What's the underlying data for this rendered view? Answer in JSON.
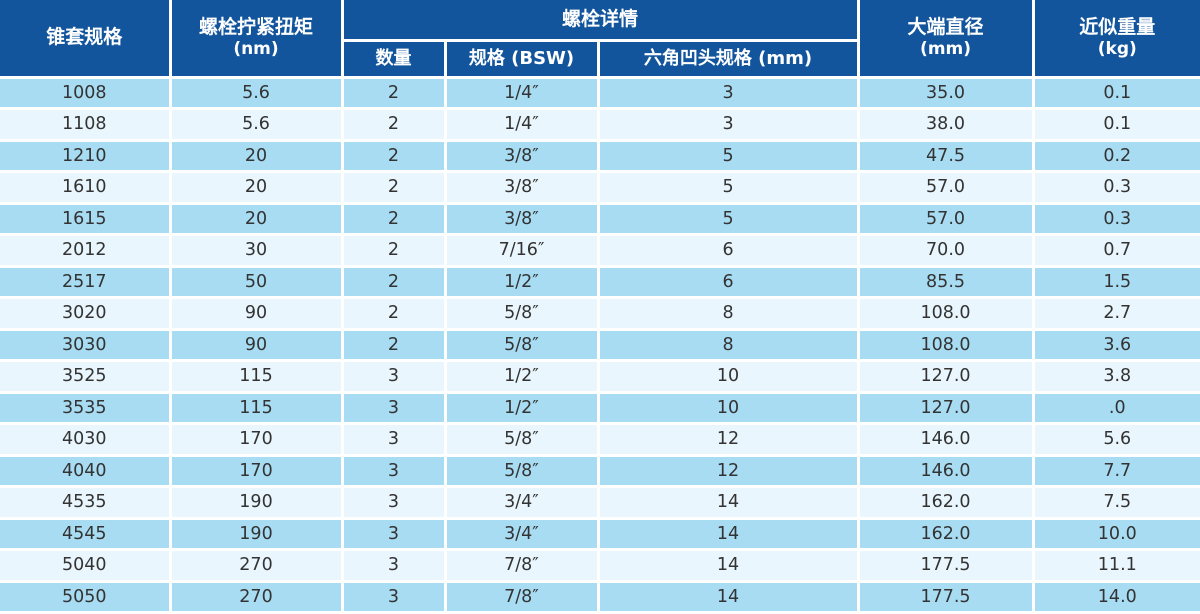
{
  "colors": {
    "header_bg": "#12559c",
    "row_dark": "#a8dcf3",
    "row_light": "#e9f6fd",
    "separator": "#ffffff",
    "header_text": "#ffffff",
    "body_text": "#333333"
  },
  "table": {
    "header": {
      "taper_spec": "锥套规格",
      "torque_line1": "螺栓拧紧扭矩",
      "torque_line2": "(nm)",
      "bolt_details_group": "螺栓详情",
      "qty": "数量",
      "spec_bsw": "规格 (BSW)",
      "hex_socket": "六角凹头规格 (mm)",
      "large_end_line1": "大端直径",
      "large_end_line2": "(mm)",
      "weight_line1": "近似重量",
      "weight_line2": "(kg)"
    },
    "column_keys": [
      "spec",
      "torque",
      "qty",
      "bsw",
      "hex",
      "diameter",
      "weight"
    ],
    "rows": [
      [
        "1008",
        "5.6",
        "2",
        "1/4″",
        "3",
        "35.0",
        "0.1"
      ],
      [
        "1108",
        "5.6",
        "2",
        "1/4″",
        "3",
        "38.0",
        "0.1"
      ],
      [
        "1210",
        "20",
        "2",
        "3/8″",
        "5",
        "47.5",
        "0.2"
      ],
      [
        "1610",
        "20",
        "2",
        "3/8″",
        "5",
        "57.0",
        "0.3"
      ],
      [
        "1615",
        "20",
        "2",
        "3/8″",
        "5",
        "57.0",
        "0.3"
      ],
      [
        "2012",
        "30",
        "2",
        "7/16″",
        "6",
        "70.0",
        "0.7"
      ],
      [
        "2517",
        "50",
        "2",
        "1/2″",
        "6",
        "85.5",
        "1.5"
      ],
      [
        "3020",
        "90",
        "2",
        "5/8″",
        "8",
        "108.0",
        "2.7"
      ],
      [
        "3030",
        "90",
        "2",
        "5/8″",
        "8",
        "108.0",
        "3.6"
      ],
      [
        "3525",
        "115",
        "3",
        "1/2″",
        "10",
        "127.0",
        "3.8"
      ],
      [
        "3535",
        "115",
        "3",
        "1/2″",
        "10",
        "127.0",
        ".0"
      ],
      [
        "4030",
        "170",
        "3",
        "5/8″",
        "12",
        "146.0",
        "5.6"
      ],
      [
        "4040",
        "170",
        "3",
        "5/8″",
        "12",
        "146.0",
        "7.7"
      ],
      [
        "4535",
        "190",
        "3",
        "3/4″",
        "14",
        "162.0",
        "7.5"
      ],
      [
        "4545",
        "190",
        "3",
        "3/4″",
        "14",
        "162.0",
        "10.0"
      ],
      [
        "5040",
        "270",
        "3",
        "7/8″",
        "14",
        "177.5",
        "11.1"
      ],
      [
        "5050",
        "270",
        "3",
        "7/8″",
        "14",
        "177.5",
        "14.0"
      ]
    ]
  }
}
